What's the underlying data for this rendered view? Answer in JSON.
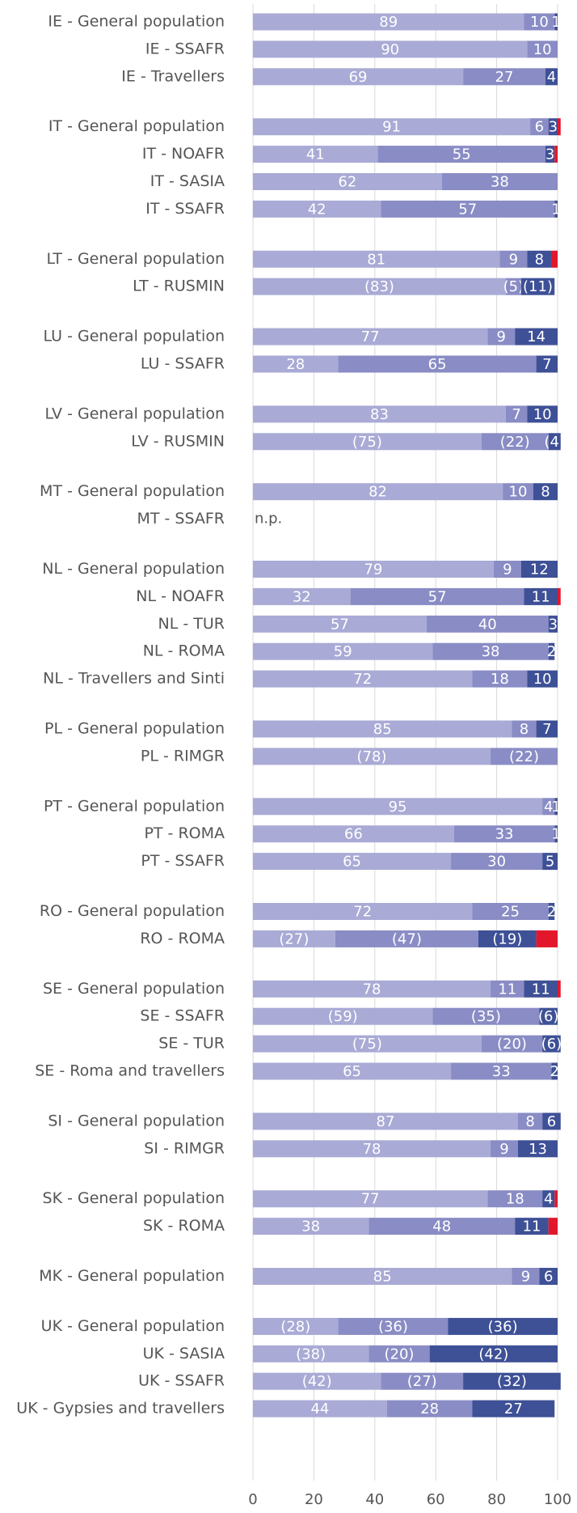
{
  "chart_data": {
    "type": "stacked-barh",
    "categories": [
      "IE - General population",
      "IE - SSAFR",
      "IE - Travellers",
      null,
      "IT - General population",
      "IT - NOAFR",
      "IT - SASIA",
      "IT - SSAFR",
      null,
      "LT - General population",
      "LT - RUSMIN",
      null,
      "LU - General population",
      "LU - SSAFR",
      null,
      "LV - General population",
      "LV - RUSMIN",
      null,
      "MT - General population",
      "MT - SSAFR",
      null,
      "NL - General population",
      "NL - NOAFR",
      "NL - TUR",
      "NL - ROMA",
      "NL - Travellers and Sinti",
      null,
      "PL - General population",
      "PL - RIMGR",
      null,
      "PT - General population",
      "PT - ROMA",
      "PT - SSAFR",
      null,
      "RO - General population",
      "RO - ROMA",
      null,
      "SE - General population",
      "SE - SSAFR",
      "SE - TUR",
      "SE - Roma and travellers",
      null,
      "SI - General population",
      "SI - RIMGR",
      null,
      "SK - General population",
      "SK - ROMA",
      null,
      "MK - General population",
      null,
      "UK - General population",
      "UK - SASIA",
      "UK - SSAFR",
      "UK - Gypsies and travellers"
    ],
    "series": [
      {
        "color": "#a9aad5",
        "values": [
          89,
          90,
          69,
          null,
          91,
          41,
          62,
          42,
          null,
          81,
          83,
          null,
          77,
          28,
          null,
          83,
          75,
          null,
          82,
          null,
          null,
          79,
          32,
          57,
          59,
          72,
          null,
          85,
          78,
          null,
          95,
          66,
          65,
          null,
          72,
          27,
          null,
          78,
          59,
          75,
          65,
          null,
          87,
          78,
          null,
          77,
          38,
          null,
          85,
          null,
          28,
          38,
          42,
          44
        ],
        "value_labels": [
          "89",
          "90",
          "69",
          null,
          "91",
          "41",
          "62",
          "42",
          null,
          "81",
          "(83)",
          null,
          "77",
          "28",
          null,
          "83",
          "(75)",
          null,
          "82",
          "n.p.",
          null,
          "79",
          "32",
          "57",
          "59",
          "72",
          null,
          "85",
          "(78)",
          null,
          "95",
          "66",
          "65",
          null,
          "72",
          "(27)",
          null,
          "78",
          "(59)",
          "(75)",
          "65",
          null,
          "87",
          "78",
          null,
          "77",
          "38",
          null,
          "85",
          null,
          "(28)",
          "(38)",
          "(42)",
          "44"
        ]
      },
      {
        "color": "#8a8cc5",
        "values": [
          10,
          10,
          27,
          null,
          6,
          55,
          38,
          57,
          null,
          9,
          5,
          null,
          9,
          65,
          null,
          7,
          22,
          null,
          10,
          null,
          null,
          9,
          57,
          40,
          38,
          18,
          null,
          8,
          22,
          null,
          4,
          33,
          30,
          null,
          25,
          47,
          null,
          11,
          35,
          20,
          33,
          null,
          8,
          9,
          null,
          18,
          48,
          null,
          9,
          null,
          36,
          20,
          27,
          28
        ],
        "value_labels": [
          "10",
          "10",
          "27",
          null,
          "6",
          "55",
          "38",
          "57",
          null,
          "9",
          "(5)",
          null,
          "9",
          "65",
          null,
          "7",
          "(22)",
          null,
          "10",
          null,
          null,
          "9",
          "57",
          "40",
          "38",
          "18",
          null,
          "8",
          "(22)",
          null,
          "4",
          "33",
          "30",
          null,
          "25",
          "(47)",
          null,
          "11",
          "(35)",
          "(20)",
          "33",
          null,
          "8",
          "9",
          null,
          "18",
          "48",
          null,
          "9",
          null,
          "(36)",
          "(20)",
          "(27)",
          "28"
        ]
      },
      {
        "color": "#3e5096",
        "values": [
          1,
          null,
          4,
          null,
          3,
          3,
          null,
          1,
          null,
          8,
          11,
          null,
          14,
          7,
          null,
          10,
          4,
          null,
          8,
          null,
          null,
          12,
          11,
          3,
          2,
          10,
          null,
          7,
          null,
          null,
          1,
          1,
          5,
          null,
          2,
          19,
          null,
          11,
          6,
          6,
          2,
          null,
          6,
          13,
          null,
          4,
          11,
          null,
          6,
          null,
          36,
          42,
          32,
          27
        ],
        "value_labels": [
          "1",
          null,
          "4",
          null,
          "3",
          "3",
          null,
          "1",
          null,
          "8",
          "(11)",
          null,
          "14",
          "7",
          null,
          "10",
          "(4)",
          null,
          "8",
          null,
          null,
          "12",
          "11",
          "3",
          "2",
          "10",
          null,
          "7",
          null,
          null,
          "1",
          "1",
          "5",
          null,
          "2",
          "(19)",
          null,
          "11",
          "(6)",
          "(6)",
          "2",
          null,
          "6",
          "13",
          null,
          "4",
          "11",
          null,
          "6",
          null,
          "(36)",
          "(42)",
          "(32)",
          "27"
        ]
      },
      {
        "color": "#e3172b",
        "values": [
          null,
          null,
          null,
          null,
          1,
          1,
          null,
          null,
          null,
          2,
          null,
          null,
          null,
          null,
          null,
          null,
          null,
          null,
          null,
          null,
          null,
          null,
          1,
          null,
          null,
          null,
          null,
          null,
          null,
          null,
          null,
          null,
          null,
          null,
          null,
          7,
          null,
          1,
          null,
          null,
          null,
          null,
          null,
          null,
          null,
          1,
          3,
          null,
          null,
          null,
          null,
          null,
          null,
          null
        ]
      }
    ],
    "xlim": [
      0,
      100
    ],
    "xticks": [
      0,
      20,
      40,
      60,
      80,
      100
    ],
    "grid": true
  }
}
